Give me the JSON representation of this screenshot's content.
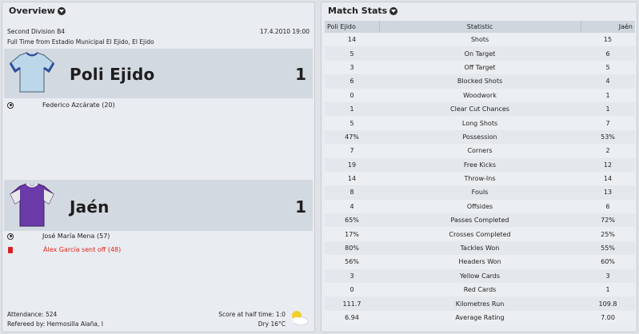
{
  "overview": {
    "title": "Overview",
    "competition": "Second Division B4",
    "datetime": "17.4.2010 19:00",
    "venue": "Full Time from Estadio Municipal El Ejido, El Ejido",
    "home": {
      "name": "Poli Ejido",
      "score": "1",
      "shirt_color": "#bcd7ea",
      "events": [
        {
          "type": "goal",
          "text": "Federico Azcárate (20)"
        }
      ]
    },
    "away": {
      "name": "Jaén",
      "score": "1",
      "shirt_color": "#6a3aa8",
      "events": [
        {
          "type": "goal",
          "text": "José María Mena (57)"
        },
        {
          "type": "red-card",
          "text": "Álex García sent off (48)"
        }
      ]
    },
    "attendance": "Attendance: 524",
    "referee": "Refereed by: Hermosilla Alaña, I",
    "halftime": "Score at half time: 1:0",
    "weather": "Dry 16°C"
  },
  "stats": {
    "title": "Match Stats",
    "headers": {
      "home": "Poli Ejido",
      "stat": "Statistic",
      "away": "Jaén"
    },
    "rows": [
      {
        "home": "14",
        "stat": "Shots",
        "away": "15"
      },
      {
        "home": "5",
        "stat": "On Target",
        "away": "6"
      },
      {
        "home": "3",
        "stat": "Off Target",
        "away": "5"
      },
      {
        "home": "6",
        "stat": "Blocked Shots",
        "away": "4"
      },
      {
        "home": "0",
        "stat": "Woodwork",
        "away": "1"
      },
      {
        "home": "1",
        "stat": "Clear Cut Chances",
        "away": "1"
      },
      {
        "home": "5",
        "stat": "Long Shots",
        "away": "7"
      },
      {
        "home": "47%",
        "stat": "Possession",
        "away": "53%"
      },
      {
        "home": "7",
        "stat": "Corners",
        "away": "2"
      },
      {
        "home": "19",
        "stat": "Free Kicks",
        "away": "12"
      },
      {
        "home": "14",
        "stat": "Throw-Ins",
        "away": "14"
      },
      {
        "home": "8",
        "stat": "Fouls",
        "away": "13"
      },
      {
        "home": "4",
        "stat": "Offsides",
        "away": "6"
      },
      {
        "home": "65%",
        "stat": "Passes Completed",
        "away": "72%"
      },
      {
        "home": "17%",
        "stat": "Crosses Completed",
        "away": "25%"
      },
      {
        "home": "80%",
        "stat": "Tackles Won",
        "away": "55%"
      },
      {
        "home": "56%",
        "stat": "Headers Won",
        "away": "60%"
      },
      {
        "home": "3",
        "stat": "Yellow Cards",
        "away": "3"
      },
      {
        "home": "0",
        "stat": "Red Cards",
        "away": "1"
      },
      {
        "home": "111.7",
        "stat": "Kilometres Run",
        "away": "109.8"
      },
      {
        "home": "6.94",
        "stat": "Average Rating",
        "away": "7.00"
      }
    ]
  }
}
